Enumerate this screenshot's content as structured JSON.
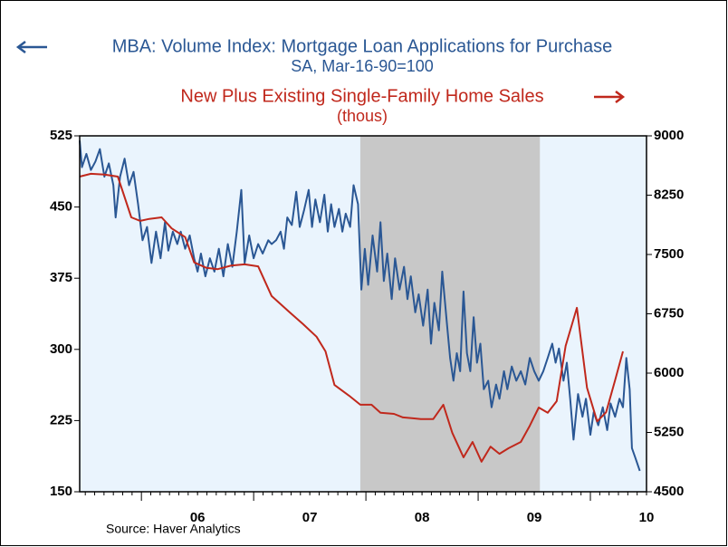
{
  "chart_data": {
    "type": "line",
    "title": "MBA: Volume Index: Mortgage Loan Applications for Purchase",
    "subtitle": "SA, Mar-16-90=100",
    "y2_title": "New Plus Existing Single-Family Home Sales",
    "y2_subtitle": "(thous)",
    "source": "Source: Haver Analytics",
    "xlim": [
      2005.45,
      2010.5
    ],
    "xticks": [
      {
        "value": 2006.5,
        "label": "06"
      },
      {
        "value": 2007.5,
        "label": "07"
      },
      {
        "value": 2008.5,
        "label": "08"
      },
      {
        "value": 2009.5,
        "label": "09"
      },
      {
        "value": 2010.5,
        "label": "10"
      }
    ],
    "ylim": [
      150,
      525
    ],
    "yticks": [
      150,
      225,
      300,
      375,
      450,
      525
    ],
    "y2lim": [
      4500,
      9000
    ],
    "y2ticks": [
      4500,
      5250,
      6000,
      6750,
      7500,
      8250,
      9000
    ],
    "shaded_regions": [
      [
        2007.95,
        2009.55
      ]
    ],
    "shade_color": "#c8c8c8",
    "background": "#eaf4fd",
    "series": [
      {
        "name": "MBA: Volume Index: Mortgage Loan Applications for Purchase",
        "color": "#2a5794",
        "axis": "y",
        "x": [
          2005.45,
          2005.47,
          2005.51,
          2005.55,
          2005.59,
          2005.63,
          2005.67,
          2005.71,
          2005.75,
          2005.77,
          2005.81,
          2005.85,
          2005.89,
          2005.93,
          2005.97,
          2006.01,
          2006.05,
          2006.09,
          2006.13,
          2006.17,
          2006.21,
          2006.24,
          2006.28,
          2006.32,
          2006.35,
          2006.39,
          2006.43,
          2006.47,
          2006.5,
          2006.53,
          2006.57,
          2006.61,
          2006.65,
          2006.69,
          2006.73,
          2006.77,
          2006.81,
          2006.85,
          2006.89,
          2006.92,
          2006.96,
          2007.0,
          2007.04,
          2007.08,
          2007.13,
          2007.16,
          2007.2,
          2007.24,
          2007.27,
          2007.3,
          2007.34,
          2007.38,
          2007.41,
          2007.45,
          2007.49,
          2007.52,
          2007.55,
          2007.59,
          2007.63,
          2007.66,
          2007.69,
          2007.72,
          2007.76,
          2007.79,
          2007.82,
          2007.86,
          2007.89,
          2007.93,
          2007.96,
          2007.99,
          2008.02,
          2008.06,
          2008.1,
          2008.13,
          2008.16,
          2008.19,
          2008.23,
          2008.26,
          2008.3,
          2008.34,
          2008.37,
          2008.4,
          2008.44,
          2008.47,
          2008.51,
          2008.55,
          2008.58,
          2008.61,
          2008.65,
          2008.68,
          2008.72,
          2008.75,
          2008.78,
          2008.81,
          2008.84,
          2008.87,
          2008.9,
          2008.93,
          2008.96,
          2008.99,
          2009.02,
          2009.05,
          2009.09,
          2009.12,
          2009.16,
          2009.19,
          2009.23,
          2009.26,
          2009.3,
          2009.34,
          2009.38,
          2009.42,
          2009.46,
          2009.5,
          2009.54,
          2009.58,
          2009.62,
          2009.66,
          2009.69,
          2009.72,
          2009.76,
          2009.79,
          2009.82,
          2009.85,
          2009.89,
          2009.93,
          2009.96,
          2010.0,
          2010.03,
          2010.07,
          2010.11,
          2010.15,
          2010.18,
          2010.22,
          2010.26,
          2010.29,
          2010.32,
          2010.35,
          2010.37,
          2010.4,
          2010.44
        ],
        "values": [
          520,
          492,
          506,
          489,
          498,
          511,
          482,
          496,
          473,
          439,
          482,
          501,
          473,
          487,
          453,
          415,
          429,
          391,
          424,
          396,
          434,
          404,
          424,
          411,
          424,
          406,
          420,
          396,
          382,
          401,
          377,
          396,
          382,
          406,
          377,
          411,
          387,
          424,
          468,
          391,
          420,
          396,
          411,
          401,
          415,
          411,
          415,
          424,
          406,
          439,
          431,
          466,
          429,
          447,
          468,
          429,
          458,
          434,
          463,
          424,
          453,
          429,
          448,
          424,
          443,
          429,
          473,
          453,
          363,
          406,
          368,
          420,
          382,
          434,
          372,
          401,
          353,
          396,
          363,
          387,
          353,
          377,
          339,
          358,
          325,
          363,
          306,
          349,
          320,
          382,
          329,
          291,
          267,
          296,
          277,
          361,
          296,
          277,
          334,
          286,
          306,
          258,
          267,
          239,
          263,
          248,
          277,
          258,
          282,
          267,
          277,
          263,
          291,
          277,
          267,
          277,
          291,
          306,
          286,
          301,
          267,
          286,
          248,
          205,
          253,
          229,
          248,
          210,
          234,
          220,
          239,
          215,
          243,
          229,
          248,
          239,
          291,
          258,
          196,
          186,
          172
        ]
      },
      {
        "name": "New Plus Existing Single-Family Home Sales",
        "color": "#c0281c",
        "axis": "y2",
        "x": [
          2005.45,
          2005.55,
          2005.67,
          2005.79,
          2005.91,
          2005.99,
          2006.07,
          2006.18,
          2006.27,
          2006.39,
          2006.47,
          2006.58,
          2006.68,
          2006.8,
          2006.92,
          2007.04,
          2007.16,
          2007.32,
          2007.44,
          2007.56,
          2007.64,
          2007.72,
          2007.85,
          2007.95,
          2008.05,
          2008.13,
          2008.25,
          2008.33,
          2008.41,
          2008.49,
          2008.6,
          2008.69,
          2008.77,
          2008.87,
          2008.95,
          2009.03,
          2009.11,
          2009.19,
          2009.27,
          2009.38,
          2009.46,
          2009.54,
          2009.62,
          2009.7,
          2009.78,
          2009.88,
          2009.97,
          2010.06,
          2010.14,
          2010.22,
          2010.29
        ],
        "values": [
          8485,
          8520,
          8510,
          8485,
          7970,
          7925,
          7950,
          7970,
          7830,
          7720,
          7400,
          7330,
          7315,
          7360,
          7375,
          7350,
          6975,
          6770,
          6620,
          6460,
          6275,
          5850,
          5715,
          5600,
          5600,
          5500,
          5485,
          5440,
          5430,
          5420,
          5420,
          5600,
          5245,
          4935,
          5130,
          4880,
          5070,
          4980,
          5050,
          5130,
          5335,
          5565,
          5500,
          5645,
          6345,
          6825,
          5815,
          5390,
          5505,
          5910,
          6275
        ]
      }
    ]
  }
}
